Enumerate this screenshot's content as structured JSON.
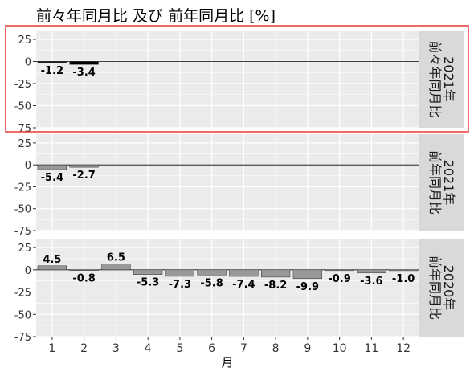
{
  "chart_data": {
    "type": "bar",
    "title": "前々年同月比 及び 前年同月比 [%]",
    "xlabel": "月",
    "categories": [
      "1",
      "2",
      "3",
      "4",
      "5",
      "6",
      "7",
      "8",
      "9",
      "10",
      "11",
      "12"
    ],
    "ylim": [
      -75,
      35
    ],
    "yticks": [
      "25",
      "0",
      "-25",
      "-50",
      "-75"
    ],
    "grid": true,
    "colors": {
      "panel_bg": "#ebebeb",
      "grid": "#ffffff",
      "strip_bg": "#d9d9d9",
      "bar_gray": "#999999",
      "bar_black": "#000000",
      "highlight": "#e53935"
    },
    "panels": [
      {
        "strip_label_1": "2021年",
        "strip_label_2": "前々年同月比",
        "bar_color": "black",
        "highlighted": true,
        "values": [
          -1.2,
          -3.4
        ],
        "labels": [
          "-1.2",
          "-3.4"
        ]
      },
      {
        "strip_label_1": "2021年",
        "strip_label_2": "前年同月比",
        "bar_color": "gray",
        "highlighted": false,
        "values": [
          -5.4,
          -2.7
        ],
        "labels": [
          "-5.4",
          "-2.7"
        ]
      },
      {
        "strip_label_1": "2020年",
        "strip_label_2": "前年同月比",
        "bar_color": "gray",
        "highlighted": false,
        "values": [
          4.5,
          -0.8,
          6.5,
          -5.3,
          -7.3,
          -5.8,
          -7.4,
          -8.2,
          -9.9,
          -0.9,
          -3.6,
          -1.0
        ],
        "labels": [
          "4.5",
          "-0.8",
          "6.5",
          "-5.3",
          "-7.3",
          "-5.8",
          "-7.4",
          "-8.2",
          "-9.9",
          "-0.9",
          "-3.6",
          "-1.0"
        ]
      }
    ]
  }
}
